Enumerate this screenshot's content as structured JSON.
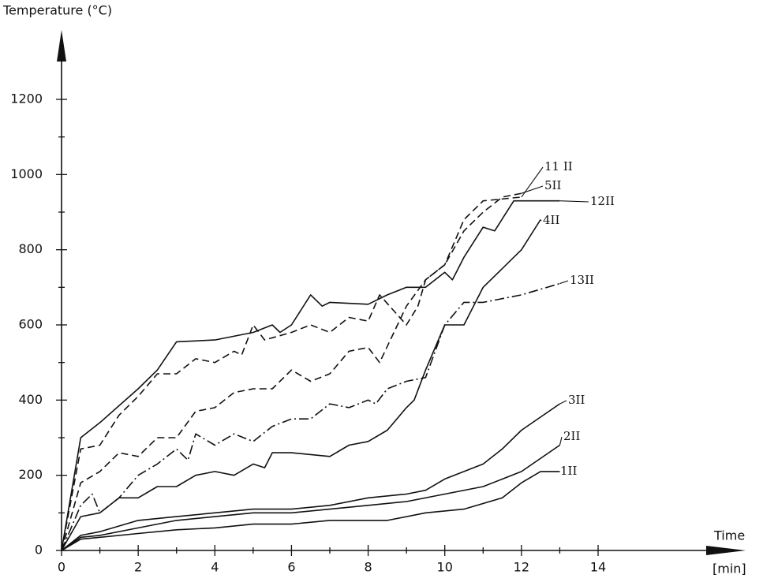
{
  "chart_data": {
    "type": "line",
    "y_label": "Temperature (°C)",
    "x_label": "Time",
    "x_unit": "[min]",
    "xlim": [
      0,
      14
    ],
    "ylim": [
      0,
      1200
    ],
    "xticks": [
      0,
      2,
      4,
      6,
      8,
      10,
      12,
      14
    ],
    "yticks": [
      0,
      200,
      400,
      600,
      800,
      1000,
      1200
    ],
    "minor_ticks": true,
    "series": [
      {
        "name": "11 II",
        "color": "#111111",
        "dash": "dashed",
        "x": [
          0,
          0.5,
          1,
          1.5,
          2,
          2.5,
          3,
          3.5,
          4,
          4.5,
          5,
          5.5,
          6,
          6.5,
          7,
          7.5,
          8,
          8.3,
          9,
          9.5,
          10,
          10.5,
          11,
          12
        ],
        "values": [
          0,
          180,
          210,
          260,
          250,
          300,
          300,
          370,
          380,
          420,
          430,
          430,
          480,
          450,
          470,
          530,
          540,
          500,
          650,
          720,
          760,
          880,
          930,
          940
        ]
      },
      {
        "name": "5II",
        "color": "#111111",
        "dash": "dashed",
        "x": [
          0,
          0.5,
          1,
          1.5,
          2,
          2.5,
          3,
          3.5,
          4,
          4.5,
          4.7,
          5,
          5.3,
          6,
          6.5,
          7,
          7.5,
          8,
          8.3,
          9,
          9.3,
          9.5,
          10,
          10.5,
          11,
          11.5,
          12
        ],
        "values": [
          0,
          270,
          280,
          360,
          410,
          470,
          470,
          510,
          500,
          530,
          520,
          600,
          560,
          580,
          600,
          580,
          620,
          610,
          680,
          600,
          650,
          720,
          760,
          850,
          900,
          940,
          950
        ]
      },
      {
        "name": "12II",
        "color": "#111111",
        "dash": "solid",
        "x": [
          0,
          0.5,
          1,
          2,
          2.5,
          3,
          4,
          5,
          5.5,
          5.7,
          6,
          6.5,
          6.8,
          7,
          8,
          8.5,
          9,
          9.5,
          10,
          10.2,
          10.5,
          11,
          11.3,
          11.8,
          13
        ],
        "values": [
          0,
          300,
          340,
          430,
          480,
          555,
          560,
          580,
          600,
          580,
          600,
          680,
          650,
          660,
          655,
          680,
          700,
          700,
          740,
          720,
          780,
          860,
          850,
          930,
          930
        ]
      },
      {
        "name": "4II",
        "color": "#111111",
        "dash": "solid",
        "x": [
          0,
          0.5,
          1,
          1.5,
          2,
          2.5,
          3,
          3.5,
          4,
          4.5,
          5,
          5.3,
          5.5,
          6,
          7,
          7.5,
          8,
          8.5,
          9,
          9.2,
          9.5,
          10,
          10.5,
          11,
          12,
          12.5
        ],
        "values": [
          0,
          90,
          100,
          140,
          140,
          170,
          170,
          200,
          210,
          200,
          230,
          220,
          260,
          260,
          250,
          280,
          290,
          320,
          380,
          400,
          480,
          600,
          600,
          700,
          800,
          880
        ]
      },
      {
        "name": "13II",
        "color": "#111111",
        "dash": "dashdot",
        "x": [
          0,
          0.5,
          0.8,
          1,
          1.5,
          2,
          2.5,
          3,
          3.3,
          3.5,
          4,
          4.5,
          5,
          5.5,
          6,
          6.5,
          7,
          7.5,
          8,
          8.2,
          8.5,
          9,
          9.5,
          10,
          10.5,
          11,
          12,
          13
        ],
        "values": [
          0,
          120,
          150,
          100,
          140,
          200,
          230,
          270,
          240,
          310,
          280,
          310,
          290,
          330,
          350,
          350,
          390,
          380,
          400,
          390,
          430,
          450,
          460,
          600,
          660,
          660,
          680,
          710
        ]
      },
      {
        "name": "3II",
        "color": "#111111",
        "dash": "solid",
        "x": [
          0,
          0.5,
          1,
          2,
          3,
          4,
          5,
          6,
          7,
          8,
          9,
          9.5,
          10,
          11,
          11.5,
          12,
          13
        ],
        "values": [
          0,
          40,
          50,
          80,
          90,
          100,
          110,
          110,
          120,
          140,
          150,
          160,
          190,
          230,
          270,
          320,
          390
        ]
      },
      {
        "name": "2II",
        "color": "#111111",
        "dash": "solid",
        "x": [
          0,
          0.5,
          1,
          2,
          3,
          4,
          5,
          6,
          7,
          8,
          9,
          10,
          11,
          12,
          13
        ],
        "values": [
          0,
          35,
          40,
          60,
          80,
          90,
          100,
          100,
          110,
          120,
          130,
          150,
          170,
          210,
          280
        ]
      },
      {
        "name": "1II",
        "color": "#111111",
        "dash": "solid",
        "x": [
          0,
          0.5,
          1,
          2,
          3,
          4,
          5,
          6,
          7,
          8.5,
          9.5,
          10.5,
          11.5,
          12,
          12.5,
          13
        ],
        "values": [
          0,
          30,
          35,
          45,
          55,
          60,
          70,
          70,
          80,
          80,
          100,
          110,
          140,
          180,
          210,
          210
        ]
      }
    ]
  }
}
